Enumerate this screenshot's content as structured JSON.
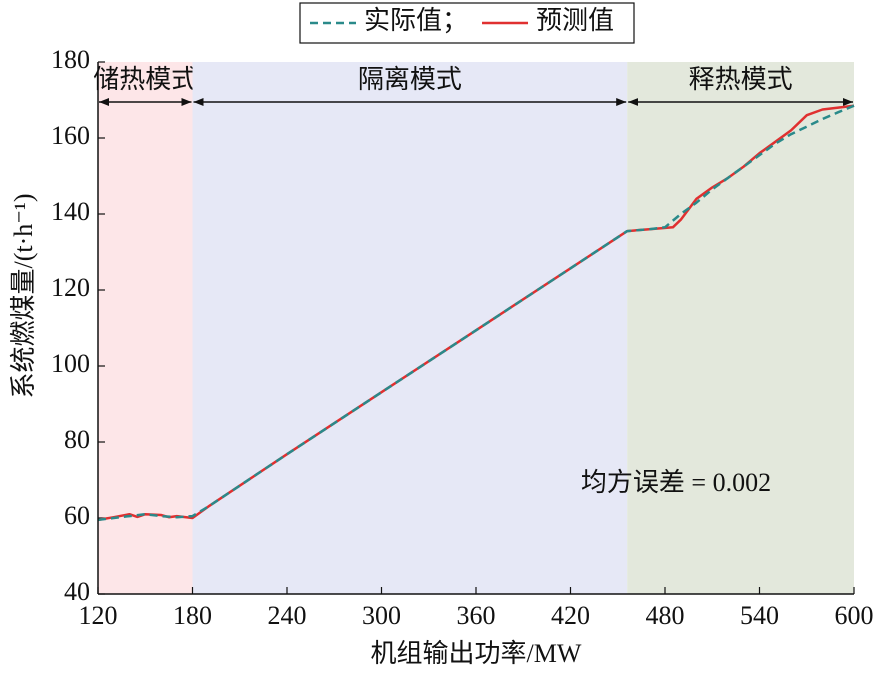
{
  "chart_data": {
    "type": "line",
    "x_label": "机组输出功率/MW",
    "y_label": "系统燃煤量/(t·h⁻¹)",
    "xlim": [
      120,
      600
    ],
    "xticks": [
      120,
      180,
      240,
      300,
      360,
      420,
      480,
      540,
      600
    ],
    "ylim": [
      40,
      180
    ],
    "yticks": [
      40,
      60,
      80,
      100,
      120,
      140,
      160,
      180
    ],
    "regions": [
      {
        "label": "储热模式",
        "range": [
          120,
          180
        ],
        "color": "#fde6e8"
      },
      {
        "label": "隔离模式",
        "range": [
          180,
          456
        ],
        "color": "#e6e8f6"
      },
      {
        "label": "释热模式",
        "range": [
          456,
          600
        ],
        "color": "#e3e8dc"
      }
    ],
    "annotation": "均方误差 = 0.002",
    "series": [
      {
        "name": "实际值；",
        "color": "#2a8a8a",
        "dash": true,
        "x": [
          120,
          130,
          140,
          150,
          160,
          170,
          180,
          190,
          240,
          300,
          360,
          420,
          456,
          470,
          480,
          490,
          500,
          510,
          520,
          530,
          540,
          550,
          560,
          570,
          580,
          590,
          600
        ],
        "values": [
          59.5,
          60,
          60.5,
          61,
          60.5,
          60.2,
          60.5,
          63,
          76.8,
          93.1,
          109.4,
          125.7,
          135.5,
          136,
          136.5,
          140,
          143,
          146.5,
          149.5,
          152.5,
          155.5,
          158.5,
          161,
          163,
          165,
          166.8,
          168.5
        ]
      },
      {
        "name": "预测值",
        "color": "#e03030",
        "dash": false,
        "x": [
          120,
          130,
          140,
          145,
          150,
          160,
          165,
          170,
          180,
          190,
          240,
          300,
          360,
          420,
          456,
          470,
          485,
          490,
          500,
          510,
          520,
          530,
          540,
          550,
          560,
          570,
          580,
          590,
          600
        ],
        "values": [
          59.5,
          60.2,
          61,
          60.3,
          61,
          60.8,
          60.2,
          60.5,
          60,
          63,
          76.8,
          93.1,
          109.4,
          125.7,
          135.5,
          136,
          136.5,
          138.5,
          144,
          147,
          149.5,
          152.5,
          156,
          159,
          162,
          166,
          167.5,
          168,
          168.5
        ]
      }
    ]
  }
}
